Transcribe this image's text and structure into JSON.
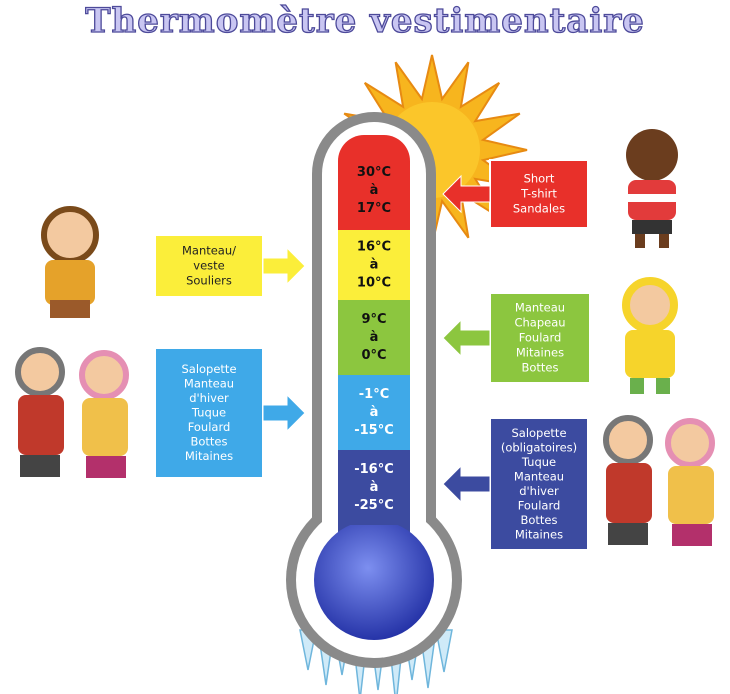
{
  "title": "Thermomètre vestimentaire",
  "bands": [
    {
      "lines": [
        "30°C",
        "à",
        "17°C"
      ]
    },
    {
      "lines": [
        "16°C",
        "à",
        "10°C"
      ]
    },
    {
      "lines": [
        "9°C",
        "à",
        "0°C"
      ]
    },
    {
      "lines": [
        "-1°C",
        "à",
        "-15°C"
      ]
    },
    {
      "lines": [
        "-16°C",
        "à",
        "-25°C"
      ]
    }
  ],
  "boxes": [
    {
      "lines": [
        "Short",
        "T-shirt",
        "Sandales"
      ]
    },
    {
      "lines": [
        "Manteau/",
        "veste",
        "Souliers"
      ]
    },
    {
      "lines": [
        "Manteau",
        "Chapeau",
        "Foulard",
        "Mitaines",
        "Bottes"
      ]
    },
    {
      "lines": [
        "Salopette",
        "Manteau",
        "d'hiver",
        "Tuque",
        "Foulard",
        "Bottes",
        "Mitaines"
      ]
    },
    {
      "lines": [
        "Salopette",
        "(obligatoires)",
        "Tuque",
        "Manteau",
        "d'hiver",
        "Foulard",
        "Bottes",
        "Mitaines"
      ]
    }
  ]
}
